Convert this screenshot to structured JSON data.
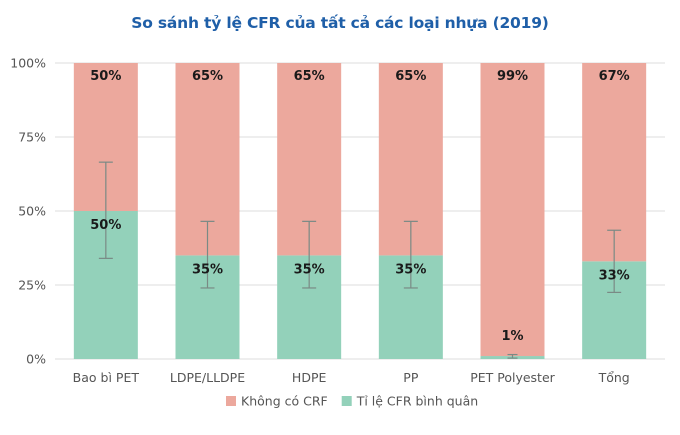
{
  "chart_data": {
    "type": "bar",
    "stacked": true,
    "title": "So sánh tỷ lệ CFR của tất cả các loại nhựa (2019)",
    "categories": [
      "Bao bì PET",
      "LDPE/LLDPE",
      "HDPE",
      "PP",
      "PET Polyester",
      "Tổng"
    ],
    "series": [
      {
        "name": "Tỉ lệ CFR bình quân",
        "color": "#93d1ba",
        "values": [
          50,
          35,
          35,
          35,
          1,
          33
        ],
        "labels": [
          "50%",
          "35%",
          "35%",
          "35%",
          "1%",
          "33%"
        ]
      },
      {
        "name": "Không có CRF",
        "color": "#eca89d",
        "values": [
          50,
          65,
          65,
          65,
          99,
          67
        ],
        "labels": [
          "50%",
          "65%",
          "65%",
          "65%",
          "99%",
          "67%"
        ]
      }
    ],
    "error_bars": {
      "color": "#7a8a85",
      "low": [
        34,
        24,
        24,
        24,
        0.3,
        22.5
      ],
      "high": [
        66.5,
        46.5,
        46.5,
        46.5,
        1.5,
        43.5
      ]
    },
    "ylim": [
      0,
      100
    ],
    "yticks": [
      "0%",
      "25%",
      "50%",
      "75%",
      "100%"
    ],
    "ytick_values": [
      0,
      25,
      50,
      75,
      100
    ],
    "grid": true,
    "legend_position": "bottom",
    "legend_order": [
      "Không có CRF",
      "Tỉ lệ CFR bình quân"
    ]
  }
}
